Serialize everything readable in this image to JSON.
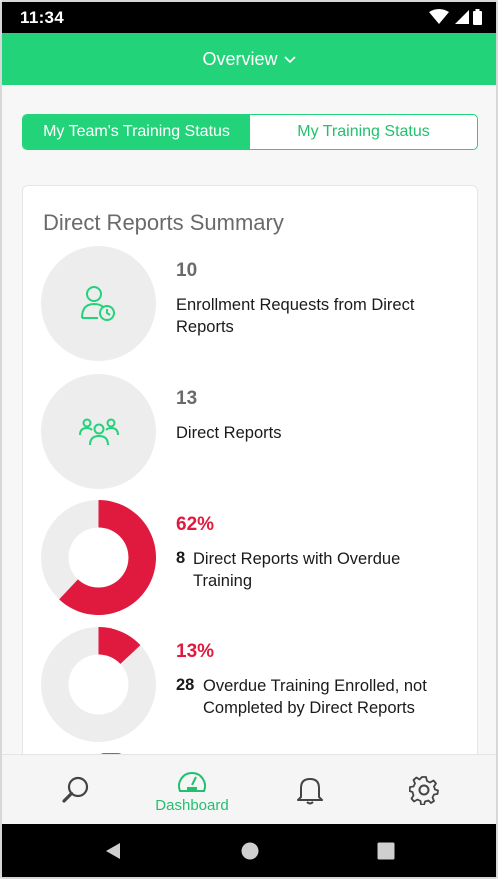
{
  "status_bar": {
    "time": "11:34"
  },
  "app_bar": {
    "title": "Overview"
  },
  "tabs": {
    "team": "My Team's Training Status",
    "mine": "My Training Status"
  },
  "summary": {
    "title": "Direct Reports Summary",
    "items": [
      {
        "value": "10",
        "label": "Enrollment Requests from Direct Reports",
        "icon": "user-clock-icon"
      },
      {
        "value": "13",
        "label": "Direct Reports",
        "icon": "group-icon"
      },
      {
        "value": "62%",
        "count": "8",
        "label": "Direct Reports with Overdue Training",
        "percent": 62
      },
      {
        "value": "13%",
        "count": "28",
        "label": "Overdue Training Enrolled, not Completed by Direct Reports",
        "percent": 13
      }
    ]
  },
  "bottom_nav": {
    "dashboard": "Dashboard"
  },
  "colors": {
    "accent": "#22d37a",
    "alert": "#e0193f",
    "muted": "#ededed"
  }
}
